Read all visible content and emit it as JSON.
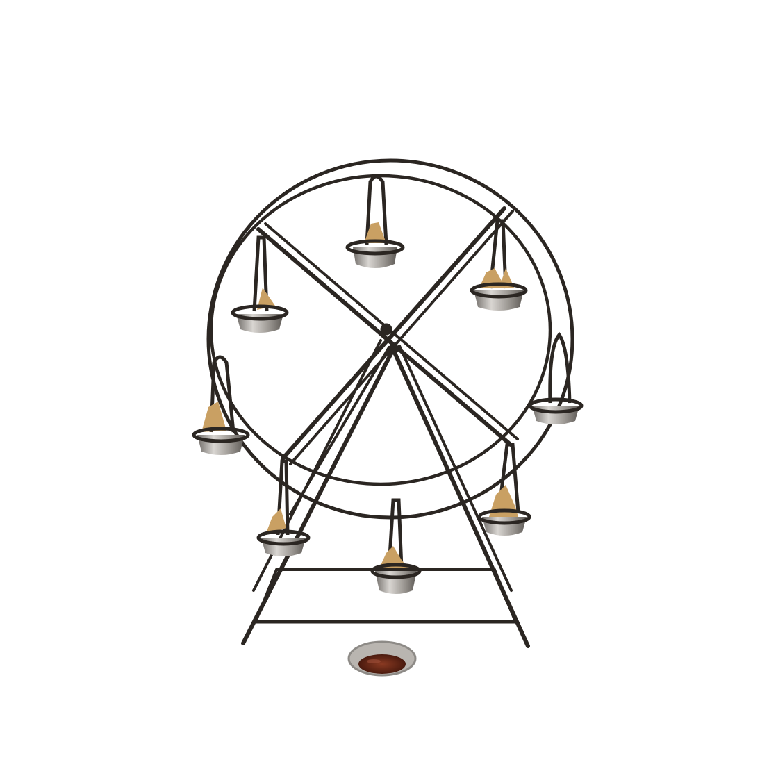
{
  "photo": {
    "subject": "ferris-wheel-serving-stand",
    "background_color": "#ffffff",
    "colors": {
      "iron": "#2b2622",
      "cup_metal": "#8d8a86",
      "cup_shine": "#d9d6d2",
      "cup_rim": "#b9b5b0",
      "food": "#c9a063",
      "food_dark": "#a67c42",
      "sauce": "#6b2a1a"
    },
    "cup_count": 8
  }
}
